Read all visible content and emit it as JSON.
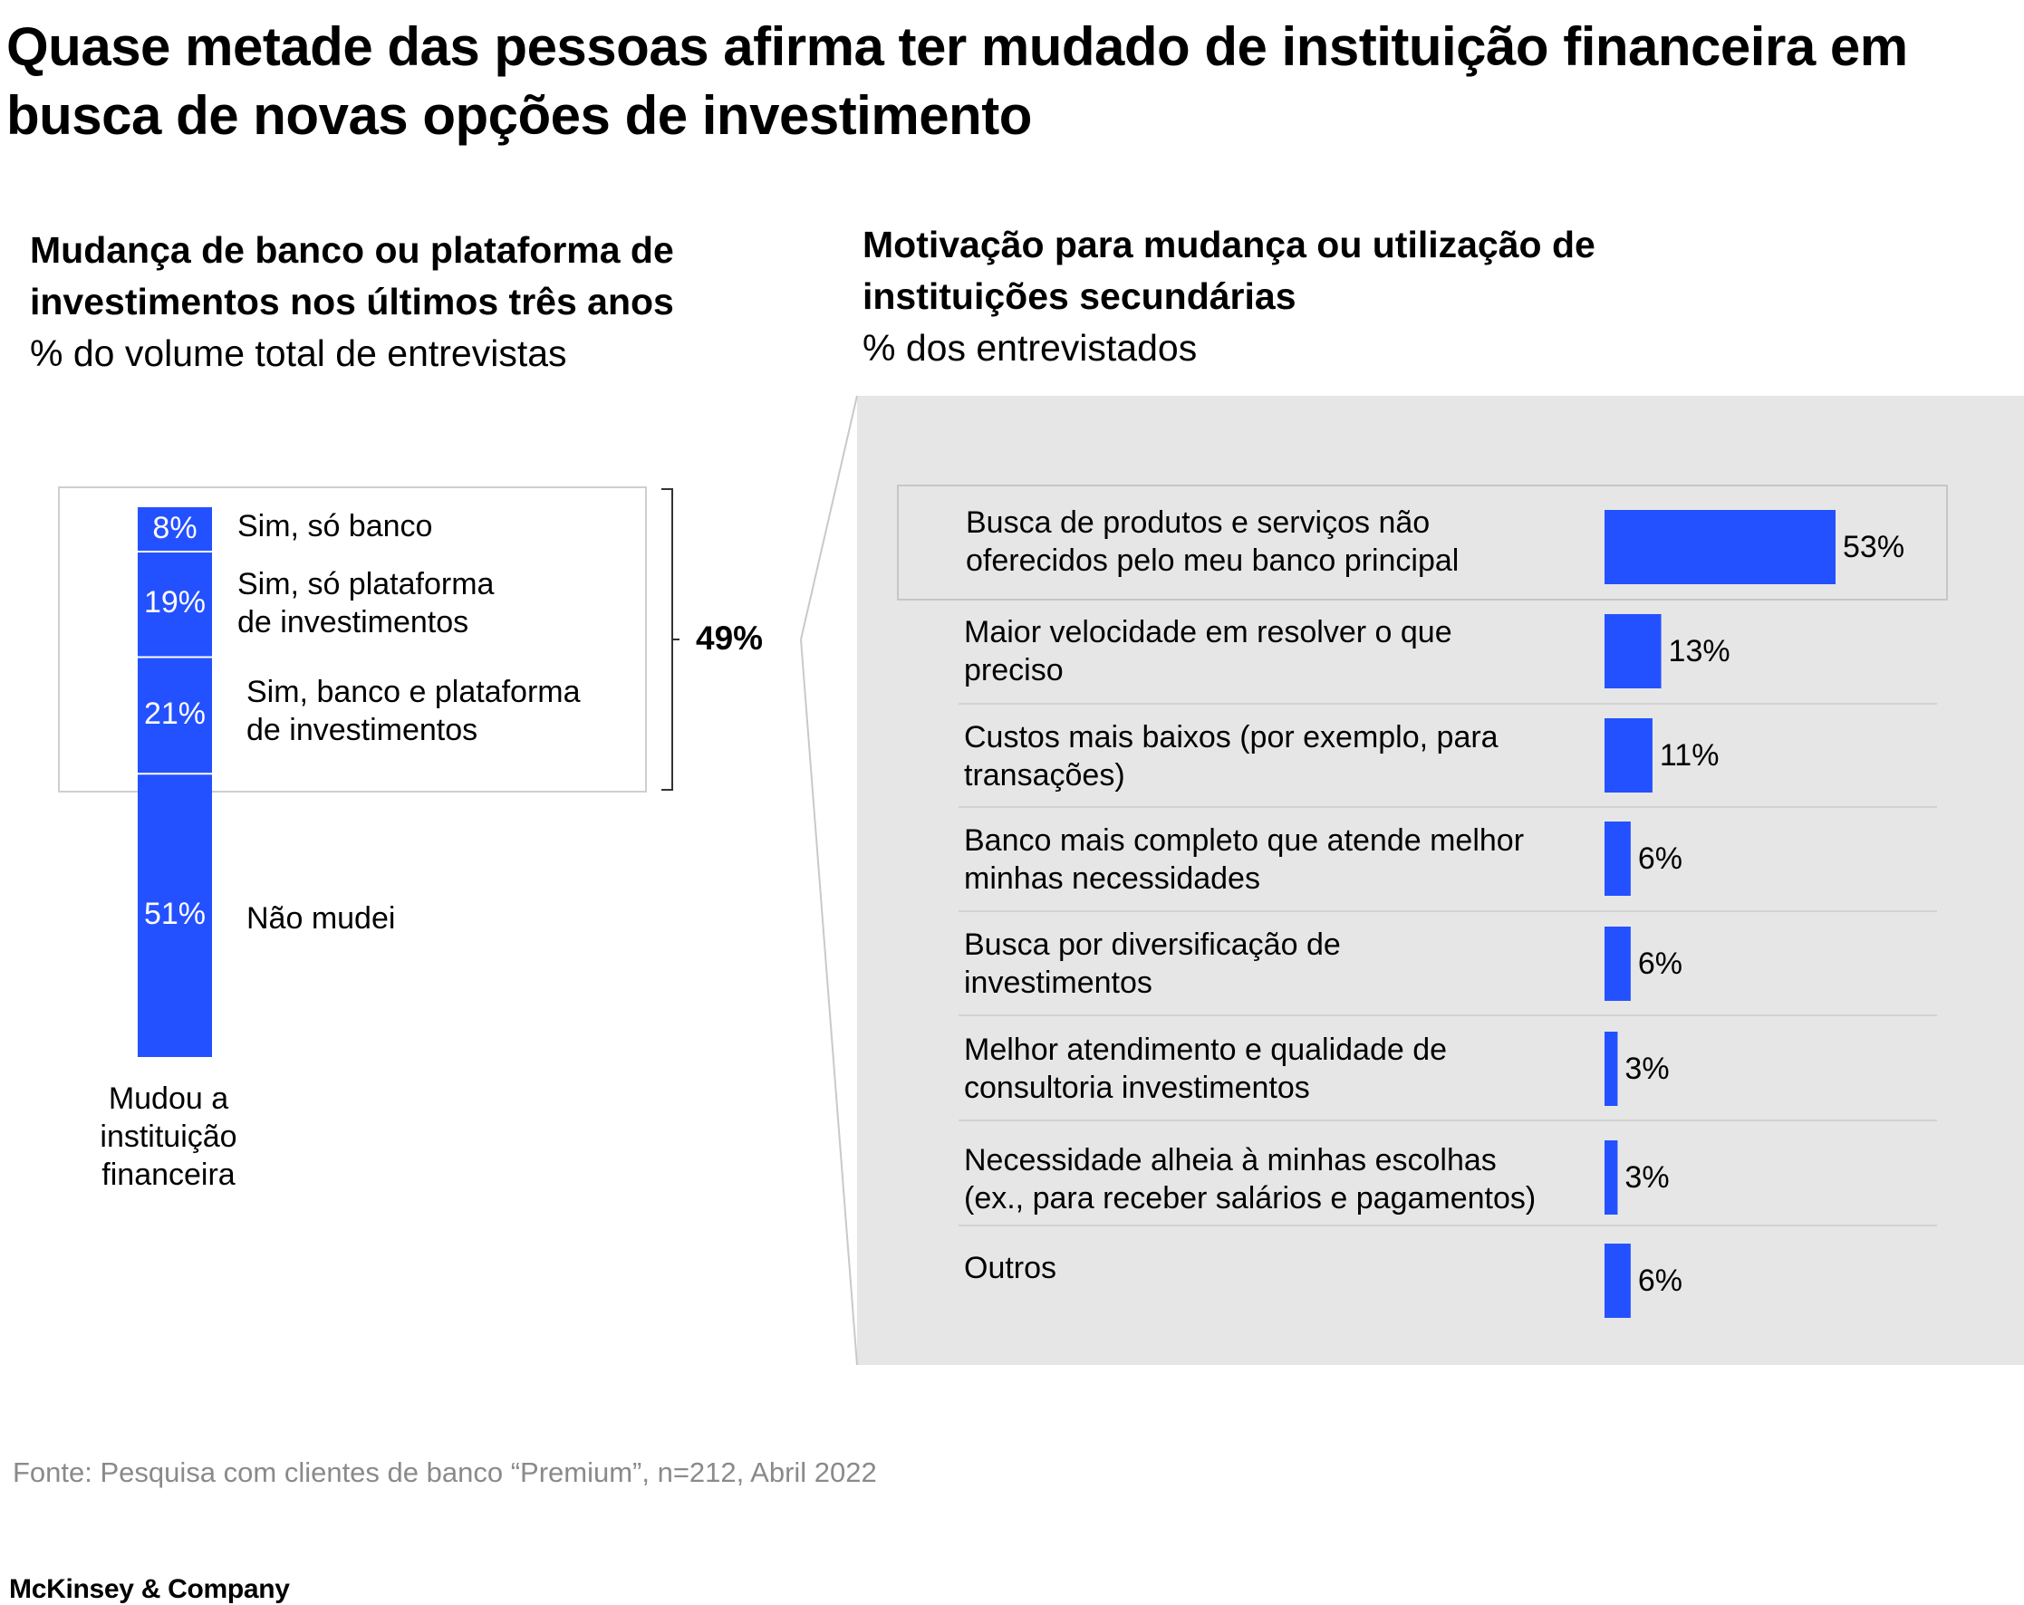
{
  "title": "Quase metade das pessoas afirma ter mudado de instituição financeira em busca de novas opções de investimento",
  "colors": {
    "bar": "#2451ff",
    "panel": "#e6e6e6",
    "footnote": "#8a8a8a"
  },
  "chart_data": [
    {
      "type": "bar",
      "orientation": "stacked-vertical",
      "title": "Mudança de banco ou plataforma de investimentos nos últimos três anos",
      "unit": "% do volume total de entrevistas",
      "categories": [
        "Mudou a instituição financeira"
      ],
      "xlabel": "Mudou a instituição financeira",
      "series": [
        {
          "name": "Sim, só banco",
          "value": 8,
          "value_label": "8%"
        },
        {
          "name": "Sim, só plataforma de investimentos",
          "value": 19,
          "value_label": "19%"
        },
        {
          "name": "Sim, banco e plataforma de investimentos",
          "value": 21,
          "value_label": "21%"
        },
        {
          "name": "Não mudei",
          "value": 51,
          "value_label": "51%"
        }
      ],
      "bracket_total": {
        "value": 49,
        "label": "49%"
      }
    },
    {
      "type": "bar",
      "orientation": "horizontal",
      "title": "Motivação para mudança ou utilização de instituições secundárias",
      "unit": "% dos entrevistados",
      "xlim": [
        0,
        53
      ],
      "categories": [
        "Busca de produtos e serviços não oferecidos pelo meu banco principal",
        "Maior velocidade em resolver o que preciso",
        "Custos mais baixos (por exemplo, para transações)",
        "Banco mais completo que atende melhor minhas necessidades",
        "Busca por diversificação de investimentos",
        "Melhor atendimento e qualidade de consultoria investimentos",
        "Necessidade alheia à minhas escolhas (ex., para receber salários e pagamentos)",
        "Outros"
      ],
      "values": [
        53,
        13,
        11,
        6,
        6,
        3,
        3,
        6
      ],
      "value_labels": [
        "53%",
        "13%",
        "11%",
        "6%",
        "6%",
        "3%",
        "3%",
        "6%"
      ],
      "highlighted_index": 0
    }
  ],
  "left": {
    "title_line1": "Mudança de banco ou plataforma de",
    "title_line2": "investimentos nos últimos três anos",
    "unit": "% do volume total de entrevistas",
    "labels": [
      [
        "Sim, só banco"
      ],
      [
        "Sim, só plataforma",
        "de investimentos"
      ],
      [
        "Sim, banco e plataforma",
        "de investimentos"
      ],
      [
        "Não mudei"
      ]
    ],
    "axis_label": [
      "Mudou a",
      "instituição",
      "financeira"
    ]
  },
  "right": {
    "title_line1": "Motivação para mudança ou utilização de",
    "title_line2": "instituições secundárias",
    "unit": "% dos entrevistados",
    "labels": [
      [
        "Busca de produtos e serviços não",
        "oferecidos pelo meu banco principal"
      ],
      [
        "Maior velocidade em resolver o que",
        "preciso"
      ],
      [
        "Custos mais baixos (por exemplo, para",
        "transações)"
      ],
      [
        "Banco mais completo que atende melhor",
        "minhas necessidades"
      ],
      [
        "Busca por diversificação de",
        "investimentos"
      ],
      [
        "Melhor atendimento e qualidade de",
        "consultoria investimentos"
      ],
      [
        "Necessidade alheia à minhas escolhas",
        "(ex., para receber salários e pagamentos)"
      ],
      [
        "Outros"
      ]
    ]
  },
  "footnote": "Fonte: Pesquisa com clientes de banco “Premium”, n=212, Abril 2022",
  "brand": "McKinsey & Company"
}
